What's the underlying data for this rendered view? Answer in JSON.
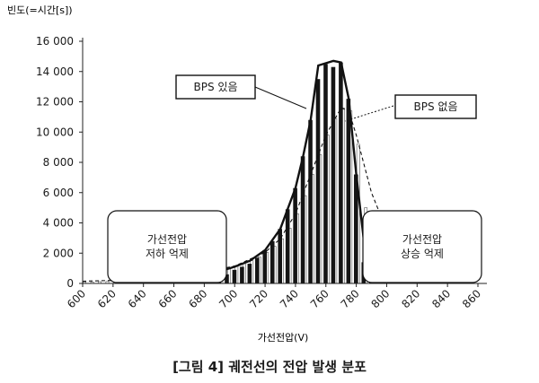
{
  "chart_data": {
    "type": "bar",
    "ylabel": "빈도(=시간[s])",
    "xlabel": "가선전압(V)",
    "ylim": [
      0,
      16000
    ],
    "xlim": [
      600,
      860
    ],
    "y_ticks": [
      "0",
      "2 000",
      "4 000",
      "6 000",
      "8 000",
      "10 000",
      "12 000",
      "14 000",
      "16 000"
    ],
    "y_tick_values": [
      0,
      2000,
      4000,
      6000,
      8000,
      10000,
      12000,
      14000,
      16000
    ],
    "x_ticks": [
      "600",
      "620",
      "640",
      "660",
      "680",
      "700",
      "720",
      "740",
      "760",
      "780",
      "800",
      "820",
      "840",
      "860"
    ],
    "x_tick_values": [
      600,
      620,
      640,
      660,
      680,
      700,
      720,
      740,
      760,
      780,
      800,
      820,
      840,
      860
    ],
    "series": [
      {
        "name": "BPS 있음",
        "kind": "bar-dark",
        "x": [
          690,
          695,
          700,
          705,
          710,
          715,
          720,
          725,
          730,
          735,
          740,
          745,
          750,
          755,
          760,
          765,
          770,
          775,
          780,
          785,
          790
        ],
        "values": [
          300,
          600,
          900,
          1100,
          1300,
          1700,
          2200,
          2800,
          3600,
          4900,
          6300,
          8400,
          10800,
          13500,
          14500,
          14300,
          14600,
          12200,
          7200,
          1400,
          300
        ]
      },
      {
        "name": "BPS 없음",
        "kind": "bar-light",
        "x": [
          600,
          605,
          610,
          615,
          620,
          625,
          630,
          635,
          640,
          645,
          650,
          655,
          660,
          665,
          670,
          675,
          680,
          685,
          690,
          695,
          700,
          705,
          710,
          715,
          720,
          725,
          730,
          735,
          740,
          745,
          750,
          755,
          760,
          765,
          770,
          775,
          780,
          785,
          790,
          795,
          800,
          805,
          810,
          815,
          820,
          825,
          830,
          835,
          840,
          845,
          850,
          855
        ],
        "values": [
          100,
          100,
          120,
          130,
          150,
          170,
          200,
          230,
          260,
          300,
          350,
          400,
          450,
          500,
          570,
          640,
          720,
          800,
          900,
          1000,
          1150,
          1300,
          1500,
          1750,
          2050,
          2450,
          2950,
          3650,
          4600,
          5800,
          7200,
          8500,
          9800,
          10900,
          11600,
          11400,
          9200,
          5000,
          4000,
          3200,
          2500,
          1900,
          1400,
          1000,
          700,
          450,
          300,
          200,
          150,
          100,
          80,
          60
        ]
      }
    ],
    "curves": [
      {
        "name": "BPS 있음",
        "style": "solid",
        "x": [
          660,
          680,
          690,
          700,
          710,
          720,
          730,
          740,
          745,
          750,
          755,
          765,
          770,
          775,
          780,
          785,
          790,
          800,
          820
        ],
        "y": [
          100,
          300,
          800,
          1100,
          1500,
          2200,
          3600,
          6300,
          8400,
          10800,
          14400,
          14700,
          14600,
          12200,
          7200,
          2800,
          1200,
          300,
          50
        ]
      },
      {
        "name": "BPS 없음",
        "style": "dashed",
        "x": [
          600,
          640,
          660,
          680,
          700,
          720,
          730,
          740,
          750,
          760,
          770,
          775,
          780,
          790,
          800,
          810,
          820,
          840,
          860
        ],
        "y": [
          150,
          250,
          450,
          750,
          1150,
          2050,
          2950,
          4600,
          7200,
          9800,
          11600,
          11400,
          9800,
          6000,
          3500,
          2200,
          1500,
          550,
          200
        ]
      }
    ],
    "annotations": [
      {
        "label": "BPS 있음"
      },
      {
        "label": "BPS 없음"
      },
      {
        "label": "가선전압\n저하 억제"
      },
      {
        "label": "가선전압\n상승 억제"
      }
    ]
  },
  "caption": "[그림 4] 궤전선의 전압 발생 분포",
  "colors": {
    "axis": "#222222",
    "dark_bar": "#151515",
    "light_bar": "#ffffff",
    "ink": "#1a1a1a"
  }
}
